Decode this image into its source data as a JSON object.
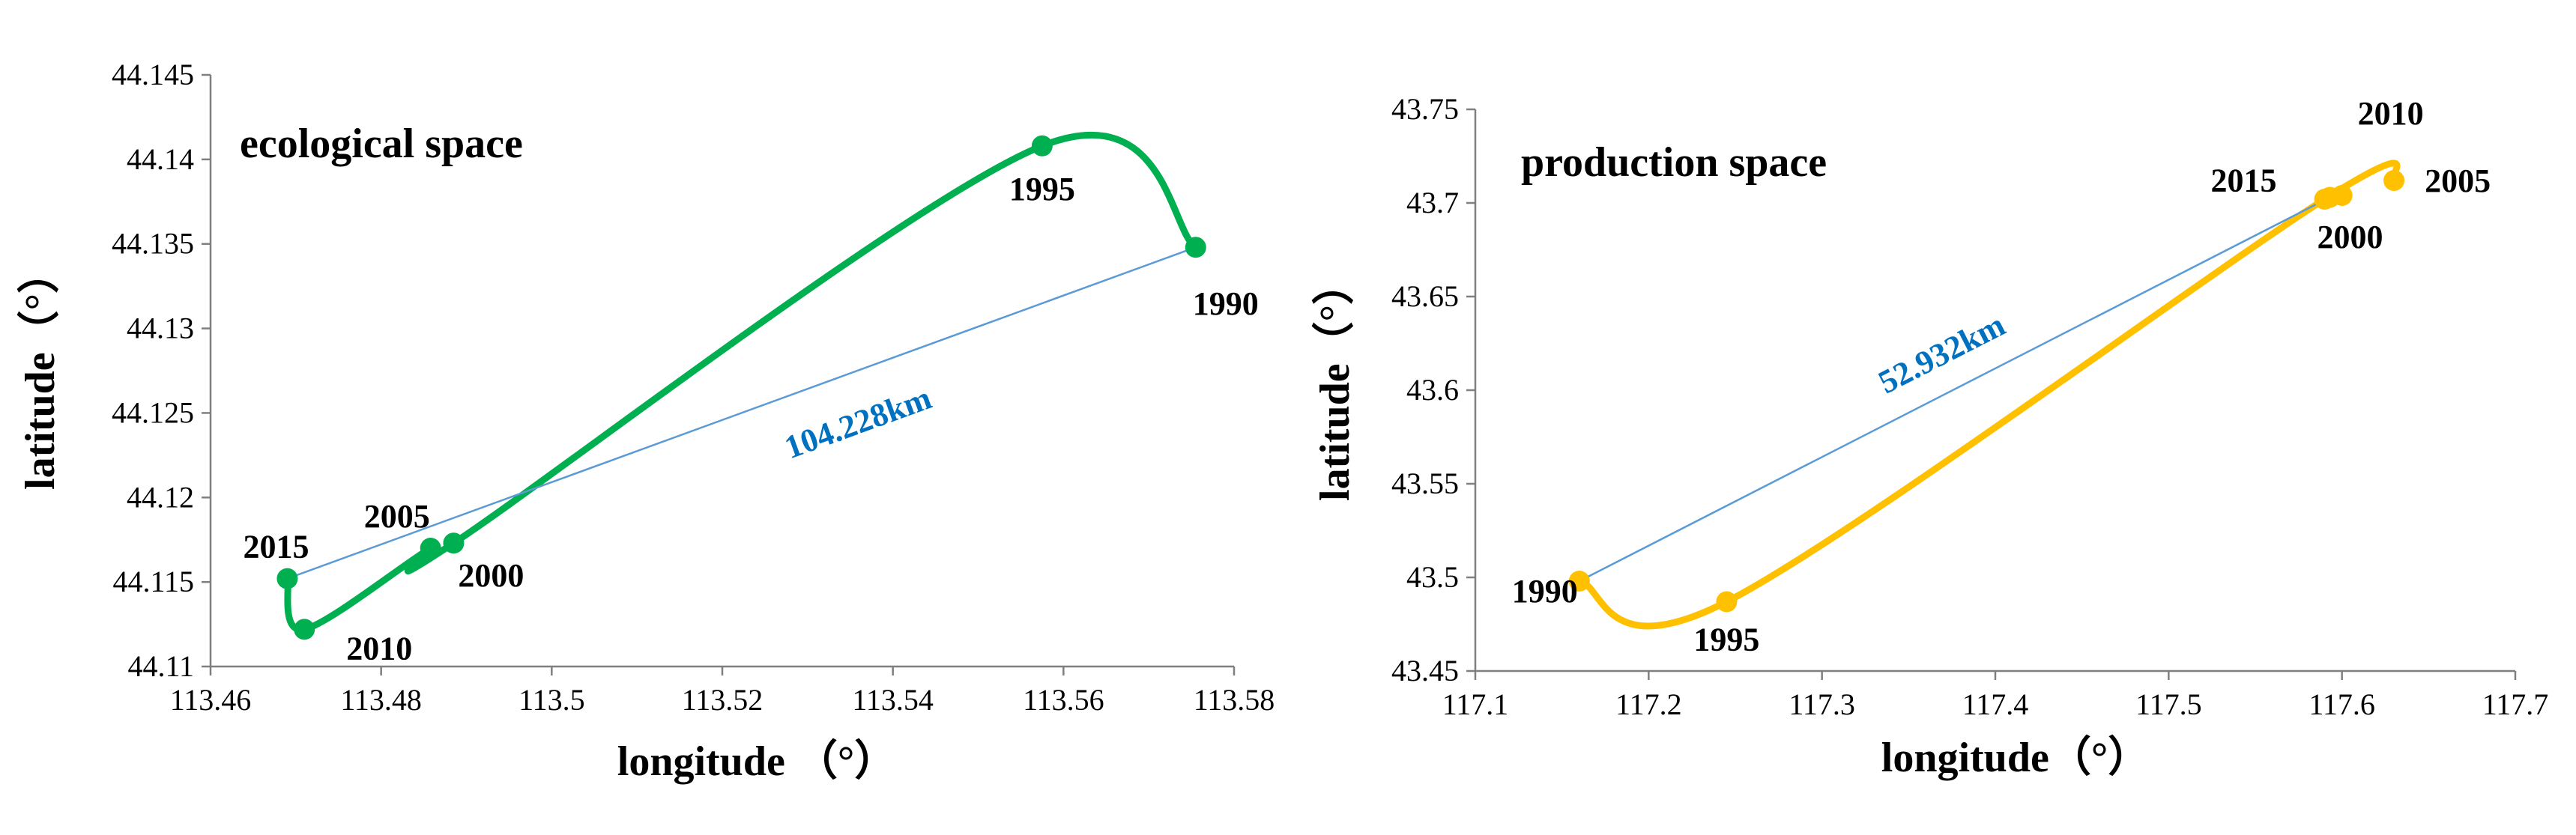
{
  "chart_data": [
    {
      "type": "line",
      "title": "ecological space",
      "xlabel": "longitude （°）",
      "ylabel": "latitude（°）",
      "xlim": [
        113.46,
        113.58
      ],
      "ylim": [
        44.11,
        44.145
      ],
      "x_ticks": [
        "113.46",
        "113.48",
        "113.5",
        "113.52",
        "113.54",
        "113.56",
        "113.58"
      ],
      "y_ticks": [
        "44.11",
        "44.115",
        "44.12",
        "44.125",
        "44.13",
        "44.135",
        "44.14",
        "44.145"
      ],
      "series_color": "#00B050",
      "arrow_color": "#5B9BD5",
      "label_color": "#0070C0",
      "points": [
        {
          "year": "1990",
          "x": 113.5755,
          "y": 44.1348
        },
        {
          "year": "1995",
          "x": 113.5575,
          "y": 44.1408
        },
        {
          "year": "2000",
          "x": 113.4885,
          "y": 44.1173
        },
        {
          "year": "2005",
          "x": 113.4858,
          "y": 44.117
        },
        {
          "year": "2010",
          "x": 113.471,
          "y": 44.1122
        },
        {
          "year": "2015",
          "x": 113.469,
          "y": 44.1152
        }
      ],
      "arrow": {
        "from": "1990",
        "to": "2015",
        "label": "104.228km"
      }
    },
    {
      "type": "line",
      "title": "production space",
      "xlabel": "longitude（°）",
      "ylabel": "latitude（°）",
      "xlim": [
        117.1,
        117.7
      ],
      "ylim": [
        43.45,
        43.75
      ],
      "x_ticks": [
        "117.1",
        "117.2",
        "117.3",
        "117.4",
        "117.5",
        "117.6",
        "117.7"
      ],
      "y_ticks": [
        "43.45",
        "43.5",
        "43.55",
        "43.6",
        "43.65",
        "43.7",
        "43.75"
      ],
      "series_color": "#FFC000",
      "arrow_color": "#5B9BD5",
      "label_color": "#0070C0",
      "points": [
        {
          "year": "1990",
          "x": 117.16,
          "y": 43.498
        },
        {
          "year": "1995",
          "x": 117.245,
          "y": 43.487
        },
        {
          "year": "2000",
          "x": 117.59,
          "y": 43.702
        },
        {
          "year": "2005",
          "x": 117.63,
          "y": 43.712
        },
        {
          "year": "2010",
          "x": 117.6,
          "y": 43.704
        },
        {
          "year": "2015",
          "x": 117.593,
          "y": 43.703
        }
      ],
      "arrow": {
        "from": "1990",
        "to": "2015",
        "label": "52.932km"
      }
    }
  ]
}
